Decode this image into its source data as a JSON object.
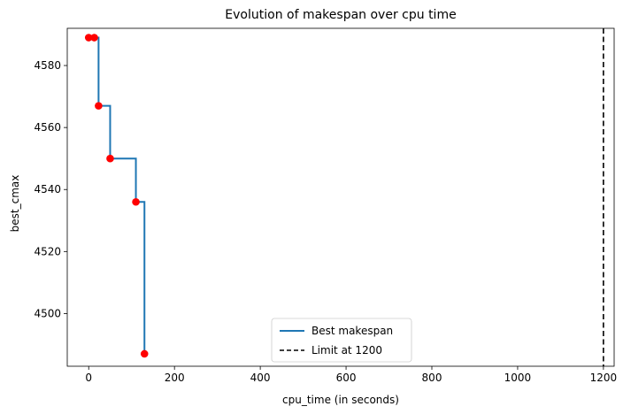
{
  "chart_data": {
    "type": "line",
    "title": "Evolution of makespan over cpu time",
    "xlabel": "cpu_time (in seconds)",
    "ylabel": "best_cmax",
    "xlim": [
      -50,
      1225
    ],
    "ylim": [
      4483,
      4592
    ],
    "xticks": [
      0,
      200,
      400,
      600,
      800,
      1000,
      1200
    ],
    "yticks": [
      4500,
      4520,
      4540,
      4560,
      4580
    ],
    "grid": false,
    "legend_position": "bottom-center",
    "series": [
      {
        "name": "Best makespan",
        "style": "step-post",
        "color": "#1f77b4",
        "x": [
          0,
          13,
          23,
          50,
          110,
          130
        ],
        "y": [
          4589,
          4589,
          4567,
          4550,
          4536,
          4487
        ]
      }
    ],
    "scatter": {
      "color": "#ff0000",
      "x": [
        0,
        13,
        23,
        50,
        110,
        130
      ],
      "y": [
        4589,
        4589,
        4567,
        4550,
        4536,
        4487
      ]
    },
    "limit_line": {
      "name": "Limit at 1200",
      "x": 1200,
      "color": "#000000",
      "style": "dashed"
    }
  }
}
